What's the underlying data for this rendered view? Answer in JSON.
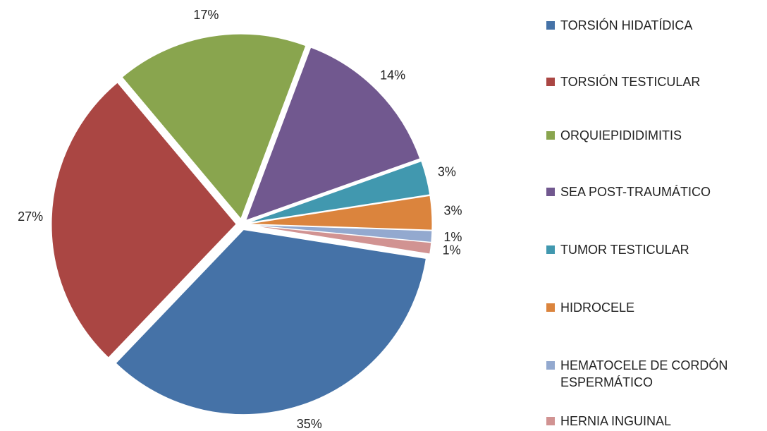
{
  "chart_data": {
    "type": "pie",
    "categories": [
      "TORSIÓN HIDATÍDICA",
      "TORSIÓN TESTICULAR",
      "ORQUIEPIDIDIMITIS",
      "SEA POST-TRAUMÁTICO",
      "TUMOR TESTICULAR",
      "HIDROCELE",
      "HEMATOCELE DE CORDÓN ESPERMÁTICO",
      "HERNIA INGUINAL"
    ],
    "values": [
      35,
      27,
      17,
      14,
      3,
      3,
      1,
      1
    ],
    "value_labels": [
      "35%",
      "27%",
      "17%",
      "14%",
      "3%",
      "3%",
      "1%",
      "1%"
    ],
    "colors": [
      "#4572a7",
      "#aa4643",
      "#89a54e",
      "#71588f",
      "#4198af",
      "#db843d",
      "#93a9cf",
      "#d19392"
    ],
    "legend": "right"
  }
}
